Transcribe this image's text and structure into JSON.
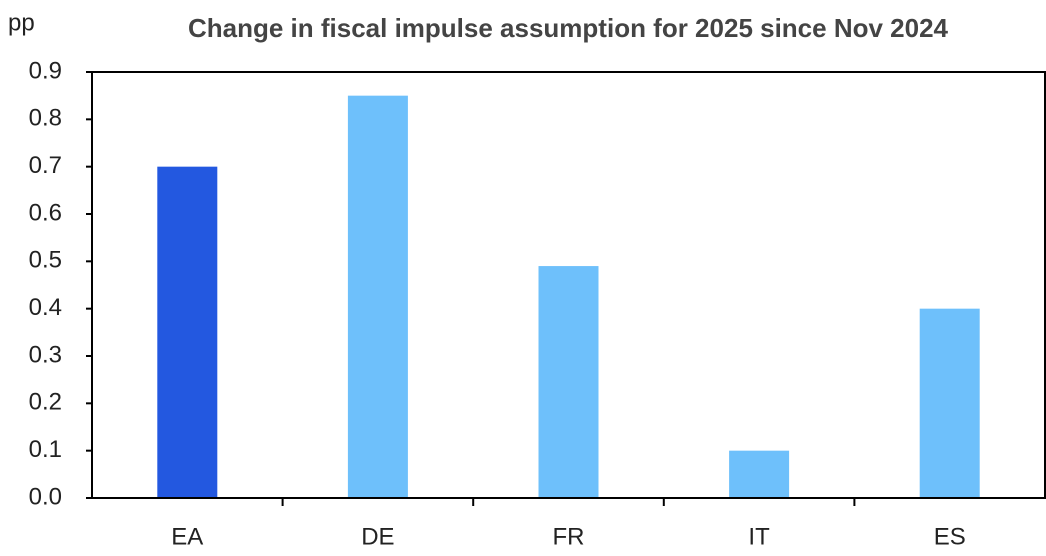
{
  "chart_data": {
    "type": "bar",
    "title": "Change in fiscal impulse assumption for 2025 since Nov 2024",
    "y_label": "pp",
    "categories": [
      "EA",
      "DE",
      "FR",
      "IT",
      "ES"
    ],
    "values": [
      0.7,
      0.85,
      0.49,
      0.1,
      0.4
    ],
    "colors": [
      "#2358e0",
      "#6ec0fb",
      "#6ec0fb",
      "#6ec0fb",
      "#6ec0fb"
    ],
    "ylim": [
      0,
      0.9
    ],
    "yticks": [
      {
        "value": 0,
        "label": "0.0"
      },
      0.1,
      0.2,
      0.3,
      0.4,
      0.5,
      0.6,
      0.7,
      0.8,
      0.9
    ],
    "grid": false
  }
}
